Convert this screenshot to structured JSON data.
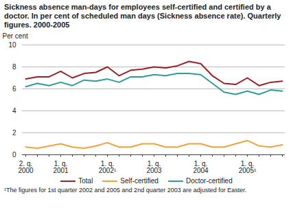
{
  "chart_data": {
    "type": "line",
    "title": "Sickness absence man-days for employees self-certified and certified by a doctor. In per cent of scheduled man days (Sickness absence rate). Quarterly figures. 2000-2005",
    "y_label": "Per cent",
    "footnote": "¹The figures for 1st quarter 2002 and 2005 and 2nd quarter 2003 are adjusted for Easter.",
    "categories": [
      "2. q.\n2000",
      null,
      null,
      "1. q.\n2001",
      null,
      null,
      null,
      "1. q.\n2002¹",
      null,
      null,
      null,
      "1. q.\n2003",
      null,
      null,
      null,
      "1. q.\n2004",
      null,
      null,
      null,
      "1. q.\n2005¹",
      null,
      null,
      null
    ],
    "series": [
      {
        "name": "Total",
        "color": "#9b1f24",
        "values": [
          6.9,
          7.1,
          7.1,
          7.6,
          7.0,
          7.4,
          7.5,
          8.0,
          7.2,
          7.7,
          7.8,
          8.0,
          7.9,
          8.1,
          8.5,
          8.3,
          7.2,
          6.5,
          6.4,
          7.0,
          6.3,
          6.6,
          6.7
        ]
      },
      {
        "name": "Self-certified",
        "color": "#f5a03a",
        "values": [
          0.7,
          0.6,
          0.8,
          1.0,
          0.7,
          0.6,
          0.8,
          1.1,
          0.7,
          0.7,
          1.0,
          1.0,
          0.7,
          0.7,
          1.0,
          1.0,
          0.7,
          0.7,
          1.0,
          1.3,
          0.8,
          0.7,
          0.9
        ]
      },
      {
        "name": "Doctor-certified",
        "color": "#2a9f9a",
        "values": [
          6.2,
          6.5,
          6.3,
          6.6,
          6.3,
          6.8,
          6.7,
          6.9,
          6.6,
          7.1,
          7.1,
          7.3,
          7.2,
          7.4,
          7.4,
          7.3,
          6.5,
          5.7,
          5.5,
          5.8,
          5.5,
          5.9,
          5.8
        ]
      }
    ],
    "ylim": [
      0,
      10
    ],
    "yticks": [
      0,
      2,
      4,
      6,
      8,
      10
    ],
    "grid": true,
    "legend": "bottom"
  }
}
